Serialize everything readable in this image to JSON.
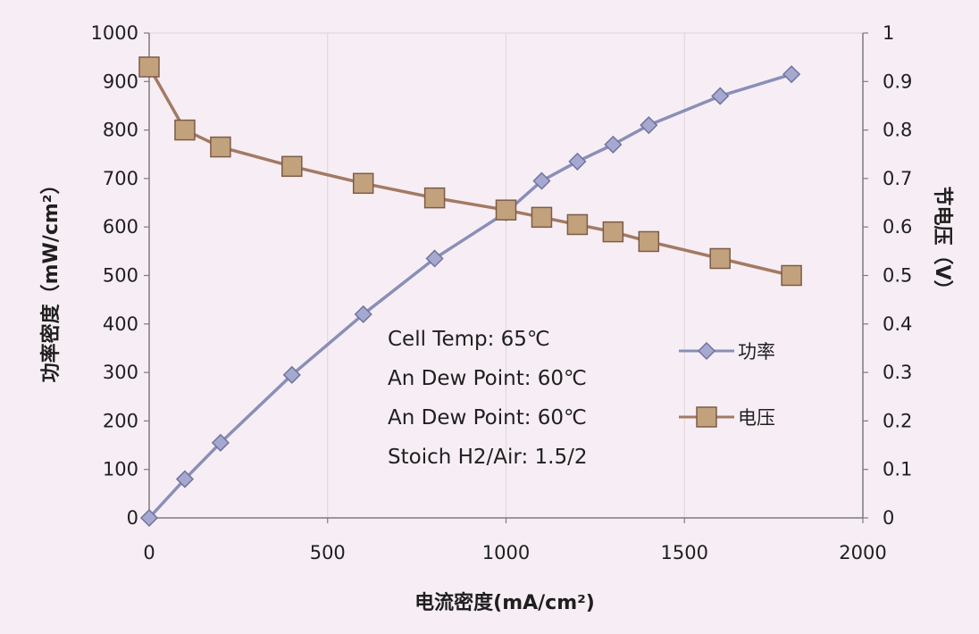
{
  "chart_data": {
    "type": "line",
    "xlabel": "电流密度(mA/cm²)",
    "ylabel_left": "功率密度（mW/cm²）",
    "ylabel_right": "节电压（V）",
    "xlim": [
      0,
      2000
    ],
    "ylim_left": [
      0,
      1000
    ],
    "ylim_right": [
      0,
      1
    ],
    "x_ticks": [
      "0",
      "500",
      "1000",
      "1500",
      "2000"
    ],
    "y_left_ticks": [
      "0",
      "100",
      "200",
      "300",
      "400",
      "500",
      "600",
      "700",
      "800",
      "900",
      "1000"
    ],
    "y_right_ticks": [
      "0",
      "0.1",
      "0.2",
      "0.3",
      "0.4",
      "0.5",
      "0.6",
      "0.7",
      "0.8",
      "0.9",
      "1"
    ],
    "grid": "vertical",
    "legend_position": "right-center",
    "series": [
      {
        "name": "功率",
        "axis": "left",
        "marker": "diamond",
        "color": "#8a8fb8",
        "points": [
          [
            0,
            0
          ],
          [
            100,
            80
          ],
          [
            200,
            155
          ],
          [
            400,
            295
          ],
          [
            600,
            420
          ],
          [
            800,
            535
          ],
          [
            1000,
            630
          ],
          [
            1100,
            695
          ],
          [
            1200,
            735
          ],
          [
            1300,
            770
          ],
          [
            1400,
            810
          ],
          [
            1600,
            870
          ],
          [
            1800,
            915
          ]
        ]
      },
      {
        "name": "电压",
        "axis": "right",
        "marker": "square",
        "color": "#a37a63",
        "points": [
          [
            0,
            0.93
          ],
          [
            100,
            0.8
          ],
          [
            200,
            0.765
          ],
          [
            400,
            0.725
          ],
          [
            600,
            0.69
          ],
          [
            800,
            0.66
          ],
          [
            1000,
            0.635
          ],
          [
            1100,
            0.62
          ],
          [
            1200,
            0.605
          ],
          [
            1300,
            0.59
          ],
          [
            1400,
            0.57
          ],
          [
            1600,
            0.535
          ],
          [
            1800,
            0.5
          ]
        ]
      }
    ],
    "annotations": [
      "Cell Temp:  65℃",
      "An Dew Point: 60℃",
      "An Dew Point: 60℃",
      "Stoich H2/Air: 1.5/2"
    ]
  }
}
